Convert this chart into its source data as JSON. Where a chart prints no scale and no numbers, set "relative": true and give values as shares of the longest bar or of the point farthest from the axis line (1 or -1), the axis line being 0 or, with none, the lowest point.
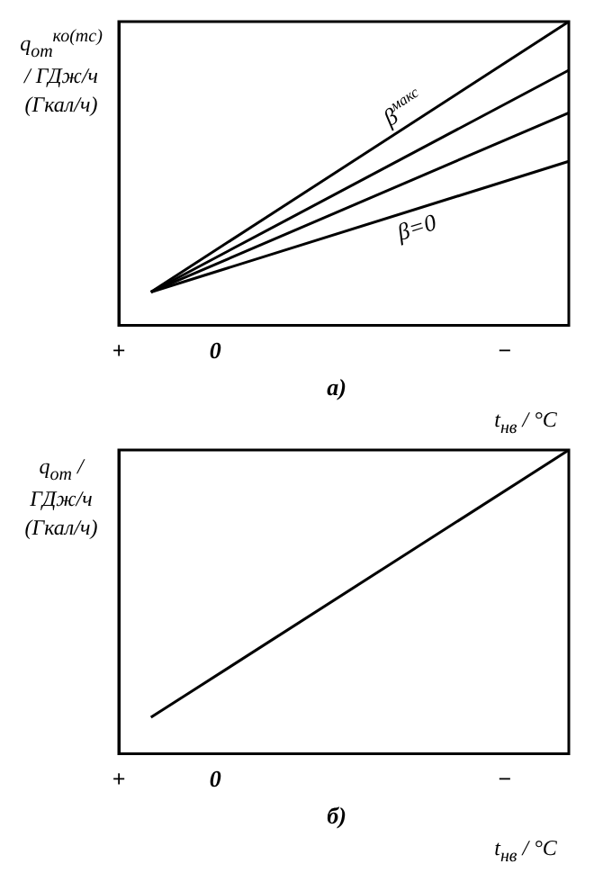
{
  "chart_data": [
    {
      "type": "line",
      "title": "а)",
      "xlabel": "t$_{нв}$ / °C",
      "ylabel": "q$_{от}$$^{ко(тс)}$ / ГДж/ч (Гкал/ч)",
      "relative": true,
      "categories": [
        "+",
        null,
        null,
        "0",
        null,
        null,
        null,
        null,
        null,
        null,
        null,
        null,
        "−",
        null,
        null
      ],
      "grid": false,
      "legend": false,
      "marker": "none",
      "line_style": "solid",
      "color": "#000000",
      "series": [
        {
          "name": "β$^{макс}$",
          "values": [
            null,
            0.11,
            null,
            null,
            null,
            null,
            null,
            null,
            null,
            null,
            null,
            null,
            null,
            null,
            1.0
          ]
        },
        {
          "values": [
            null,
            0.11,
            null,
            null,
            null,
            null,
            null,
            null,
            null,
            null,
            null,
            null,
            null,
            null,
            0.84
          ]
        },
        {
          "values": [
            null,
            0.11,
            null,
            null,
            null,
            null,
            null,
            null,
            null,
            null,
            null,
            null,
            null,
            null,
            0.7
          ]
        },
        {
          "name": "β=0",
          "values": [
            null,
            0.11,
            null,
            null,
            null,
            null,
            null,
            null,
            null,
            null,
            null,
            null,
            null,
            null,
            0.54
          ]
        }
      ]
    },
    {
      "type": "line",
      "title": "б)",
      "xlabel": "t$_{нв}$ / °C",
      "ylabel": "q$_{от}$ / ГДж/ч (Гкал/ч)",
      "relative": true,
      "categories": [
        "+",
        null,
        null,
        "0",
        null,
        null,
        null,
        null,
        null,
        null,
        null,
        null,
        "−",
        null,
        null
      ],
      "grid": false,
      "legend": false,
      "marker": "none",
      "line_style": "solid",
      "color": "#000000",
      "series": [
        {
          "values": [
            null,
            0.12,
            null,
            null,
            null,
            null,
            null,
            null,
            null,
            null,
            null,
            null,
            null,
            null,
            1.0
          ]
        }
      ]
    }
  ]
}
